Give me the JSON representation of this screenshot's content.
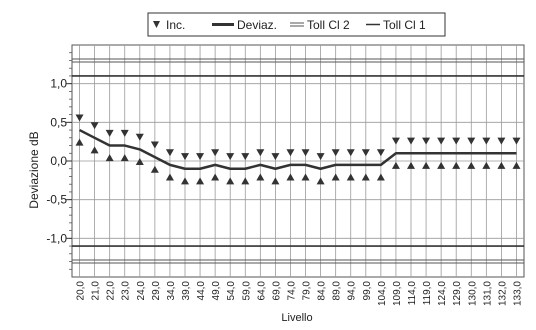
{
  "chart_data": {
    "type": "line",
    "xlabel": "Livello",
    "ylabel": "Deviazione dB",
    "ylim": [
      -1.5,
      1.5
    ],
    "yticks": [
      1.0,
      0.5,
      0.0,
      -0.5,
      -1.0
    ],
    "ytick_labels": [
      "1,0",
      "0,5",
      "0,0",
      "-0,5",
      "-1,0"
    ],
    "categories": [
      "20,0",
      "21,0",
      "22,0",
      "23,0",
      "24,0",
      "29,0",
      "34,0",
      "39,0",
      "44,0",
      "49,0",
      "54,0",
      "59,0",
      "64,0",
      "69,0",
      "74,0",
      "79,0",
      "84,0",
      "89,0",
      "94,0",
      "99,0",
      "104,0",
      "109,0",
      "114,0",
      "119,0",
      "124,0",
      "129,0",
      "130,0",
      "131,0",
      "132,0",
      "133,0"
    ],
    "legend": {
      "placement": "top-center",
      "entries": [
        {
          "label": "Inc.",
          "marker": "triangle-down"
        },
        {
          "label": "Deviaz.",
          "marker": "thick-line"
        },
        {
          "label": "Toll Cl 2",
          "marker": "double-line"
        },
        {
          "label": "Toll Cl 1",
          "marker": "line"
        }
      ]
    },
    "series": [
      {
        "name": "Deviaz.",
        "values": [
          0.4,
          0.3,
          0.2,
          0.2,
          0.15,
          0.05,
          -0.05,
          -0.1,
          -0.1,
          -0.05,
          -0.1,
          -0.1,
          -0.05,
          -0.1,
          -0.05,
          -0.05,
          -0.1,
          -0.05,
          -0.05,
          -0.05,
          -0.05,
          0.1,
          0.1,
          0.1,
          0.1,
          0.1,
          0.1,
          0.1,
          0.1,
          0.1
        ]
      },
      {
        "name": "Inc.",
        "upper": [
          0.55,
          0.45,
          0.35,
          0.35,
          0.3,
          0.2,
          0.1,
          0.05,
          0.05,
          0.1,
          0.05,
          0.05,
          0.1,
          0.05,
          0.1,
          0.1,
          0.05,
          0.1,
          0.1,
          0.1,
          0.1,
          0.25,
          0.25,
          0.25,
          0.25,
          0.25,
          0.25,
          0.25,
          0.25,
          0.25
        ],
        "lower": [
          0.25,
          0.15,
          0.05,
          0.05,
          0.0,
          -0.1,
          -0.2,
          -0.25,
          -0.25,
          -0.2,
          -0.25,
          -0.25,
          -0.2,
          -0.25,
          -0.2,
          -0.2,
          -0.25,
          -0.2,
          -0.2,
          -0.2,
          -0.2,
          -0.05,
          -0.05,
          -0.05,
          -0.05,
          -0.05,
          -0.05,
          -0.05,
          -0.05,
          -0.05
        ]
      }
    ],
    "tolerance_lines": {
      "toll_cl1": [
        1.1,
        -1.1
      ],
      "toll_cl2": [
        1.3,
        -1.3
      ]
    },
    "grid": true
  },
  "colors": {
    "line": "#333333",
    "grid": "#9a9a9a",
    "frame": "#555555"
  }
}
